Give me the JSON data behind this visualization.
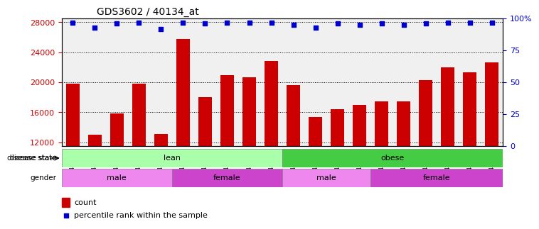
{
  "title": "GDS3602 / 40134_at",
  "samples": [
    "GSM47286",
    "GSM47299",
    "GSM47300",
    "GSM47301",
    "GSM47303",
    "GSM47229",
    "GSM47230",
    "GSM47231",
    "GSM47232",
    "GSM47233",
    "GSM47333",
    "GSM47334",
    "GSM47335",
    "GSM47336",
    "GSM47337",
    "GSM47324",
    "GSM47325",
    "GSM47326",
    "GSM47327",
    "GSM47328"
  ],
  "counts": [
    19800,
    13000,
    15900,
    19800,
    13100,
    25800,
    18000,
    21000,
    20700,
    22800,
    19600,
    15400,
    16400,
    17000,
    17500,
    17500,
    20300,
    22000,
    21300,
    22700
  ],
  "percentiles": [
    97,
    93,
    96,
    97,
    92,
    97,
    96,
    97,
    97,
    97,
    95,
    93,
    96,
    95,
    96,
    95,
    96,
    97,
    97,
    97
  ],
  "bar_color": "#cc0000",
  "dot_color": "#0000cc",
  "ylim_left": [
    11500,
    28500
  ],
  "ylim_right": [
    0,
    100
  ],
  "yticks_left": [
    12000,
    16000,
    20000,
    24000,
    28000
  ],
  "yticks_right": [
    0,
    25,
    50,
    75,
    100
  ],
  "disease_state": [
    {
      "label": "lean",
      "start": 0,
      "end": 10,
      "color": "#aaffaa"
    },
    {
      "label": "obese",
      "start": 10,
      "end": 20,
      "color": "#44cc44"
    }
  ],
  "gender": [
    {
      "label": "male",
      "start": 0,
      "end": 5,
      "color": "#ee88ee"
    },
    {
      "label": "female",
      "start": 5,
      "end": 10,
      "color": "#cc44cc"
    },
    {
      "label": "male",
      "start": 10,
      "end": 14,
      "color": "#ee88ee"
    },
    {
      "label": "female",
      "start": 14,
      "end": 20,
      "color": "#cc44cc"
    }
  ],
  "legend_count_color": "#cc0000",
  "legend_dot_color": "#0000cc",
  "bg_color": "#ffffff",
  "tick_label_color_left": "#cc0000",
  "tick_label_color_right": "#0000cc",
  "grid_color": "#000000",
  "bar_bottom": 11500
}
